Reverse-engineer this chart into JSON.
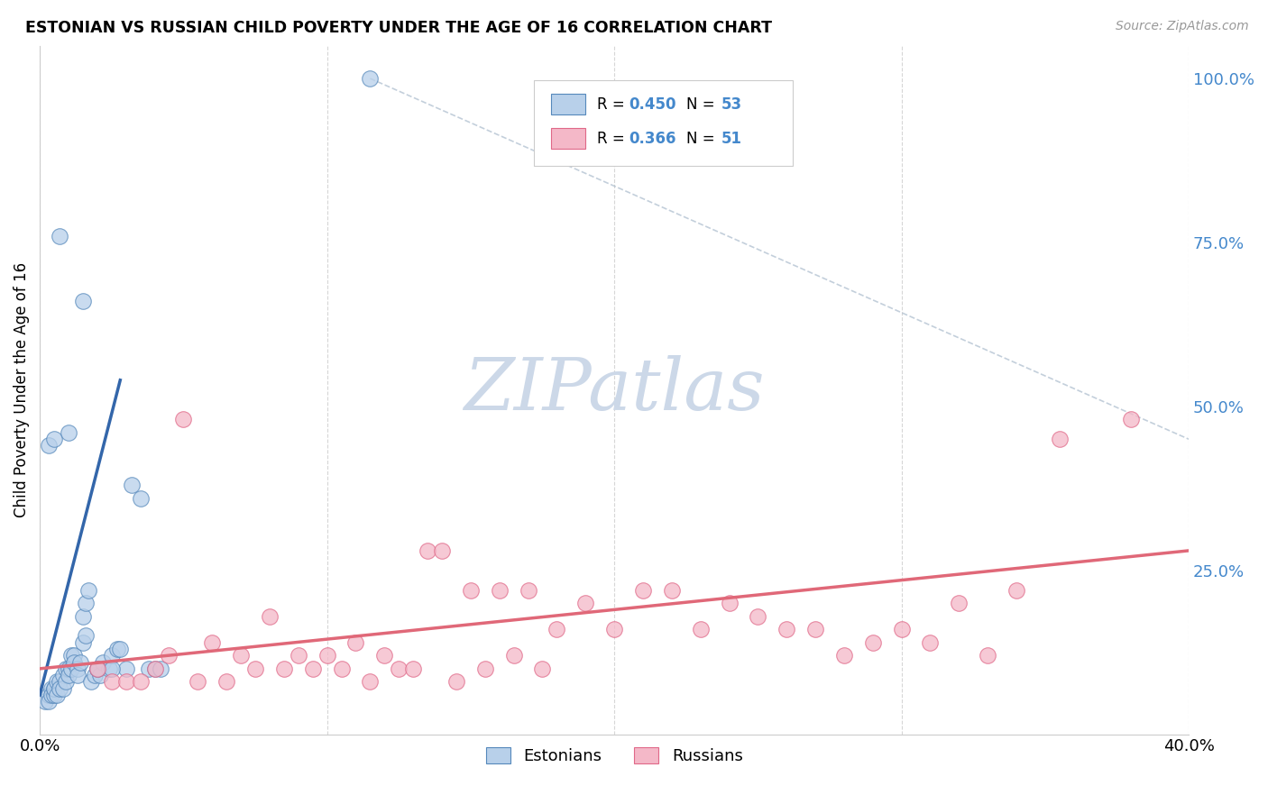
{
  "title": "ESTONIAN VS RUSSIAN CHILD POVERTY UNDER THE AGE OF 16 CORRELATION CHART",
  "source": "Source: ZipAtlas.com",
  "ylabel": "Child Poverty Under the Age of 16",
  "xlim": [
    0.0,
    0.4
  ],
  "ylim": [
    0.0,
    1.05
  ],
  "right_yticks": [
    1.0,
    0.75,
    0.5,
    0.25
  ],
  "right_yticklabels": [
    "100.0%",
    "75.0%",
    "50.0%",
    "25.0%"
  ],
  "xtick_positions": [
    0.0,
    0.1,
    0.2,
    0.3,
    0.4
  ],
  "xtick_labels": [
    "0.0%",
    "",
    "",
    "",
    "40.0%"
  ],
  "blue_fill": "#b8d0ea",
  "blue_edge": "#5588bb",
  "pink_fill": "#f4b8c8",
  "pink_edge": "#e06888",
  "trend_blue": "#3366aa",
  "trend_pink": "#e06878",
  "dash_color": "#aabbcc",
  "watermark_color": "#ccd8e8",
  "grid_color": "#cccccc",
  "right_tick_color": "#4488cc",
  "estonians_x": [
    0.002,
    0.003,
    0.003,
    0.004,
    0.004,
    0.005,
    0.005,
    0.005,
    0.006,
    0.006,
    0.007,
    0.007,
    0.008,
    0.008,
    0.009,
    0.009,
    0.01,
    0.01,
    0.011,
    0.011,
    0.012,
    0.012,
    0.013,
    0.013,
    0.014,
    0.015,
    0.015,
    0.016,
    0.016,
    0.017,
    0.018,
    0.019,
    0.02,
    0.021,
    0.022,
    0.024,
    0.025,
    0.027,
    0.028,
    0.03,
    0.032,
    0.035,
    0.038,
    0.04,
    0.042,
    0.003,
    0.005,
    0.007,
    0.01,
    0.015,
    0.02,
    0.025,
    0.115
  ],
  "estonians_y": [
    0.05,
    0.06,
    0.05,
    0.07,
    0.06,
    0.07,
    0.06,
    0.07,
    0.08,
    0.06,
    0.08,
    0.07,
    0.09,
    0.07,
    0.1,
    0.08,
    0.1,
    0.09,
    0.12,
    0.1,
    0.12,
    0.11,
    0.1,
    0.09,
    0.11,
    0.18,
    0.14,
    0.2,
    0.15,
    0.22,
    0.08,
    0.09,
    0.1,
    0.09,
    0.11,
    0.1,
    0.12,
    0.13,
    0.13,
    0.1,
    0.38,
    0.36,
    0.1,
    0.1,
    0.1,
    0.44,
    0.45,
    0.76,
    0.46,
    0.66,
    0.1,
    0.1,
    1.0
  ],
  "russians_x": [
    0.02,
    0.025,
    0.03,
    0.035,
    0.04,
    0.045,
    0.05,
    0.055,
    0.06,
    0.065,
    0.07,
    0.075,
    0.08,
    0.085,
    0.09,
    0.095,
    0.1,
    0.105,
    0.11,
    0.115,
    0.12,
    0.125,
    0.13,
    0.135,
    0.14,
    0.145,
    0.15,
    0.155,
    0.16,
    0.165,
    0.17,
    0.175,
    0.18,
    0.19,
    0.2,
    0.21,
    0.22,
    0.23,
    0.24,
    0.25,
    0.26,
    0.27,
    0.28,
    0.29,
    0.3,
    0.31,
    0.32,
    0.33,
    0.34,
    0.355,
    0.38
  ],
  "russians_y": [
    0.1,
    0.08,
    0.08,
    0.08,
    0.1,
    0.12,
    0.48,
    0.08,
    0.14,
    0.08,
    0.12,
    0.1,
    0.18,
    0.1,
    0.12,
    0.1,
    0.12,
    0.1,
    0.14,
    0.08,
    0.12,
    0.1,
    0.1,
    0.28,
    0.28,
    0.08,
    0.22,
    0.1,
    0.22,
    0.12,
    0.22,
    0.1,
    0.16,
    0.2,
    0.16,
    0.22,
    0.22,
    0.16,
    0.2,
    0.18,
    0.16,
    0.16,
    0.12,
    0.14,
    0.16,
    0.14,
    0.2,
    0.12,
    0.22,
    0.45,
    0.48
  ],
  "blue_trend_x": [
    0.0,
    0.028
  ],
  "blue_trend_y": [
    0.06,
    0.54
  ],
  "pink_trend_x": [
    0.0,
    0.4
  ],
  "pink_trend_y": [
    0.1,
    0.28
  ],
  "dash_line_x": [
    0.115,
    0.4
  ],
  "dash_line_y": [
    1.0,
    0.45
  ]
}
